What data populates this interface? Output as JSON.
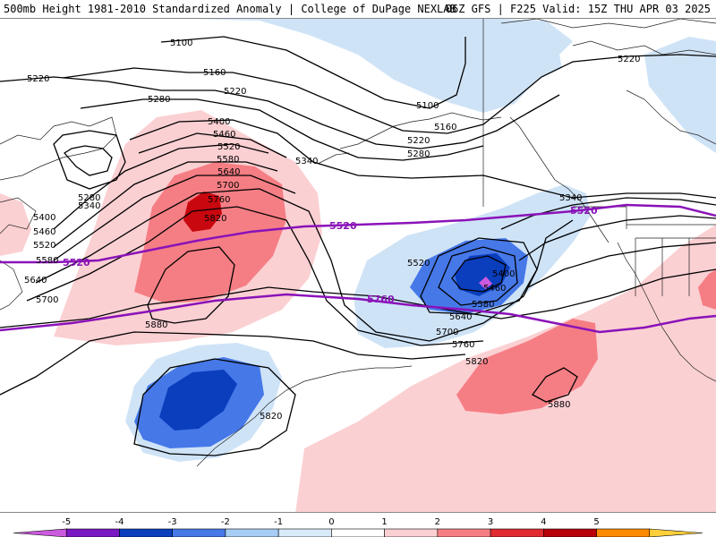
{
  "header": {
    "left_title": "500mb Height 1981-2010 Standardized Anomaly | College of DuPage NEXLAB",
    "right_title": "06Z GFS | F225 Valid: 15Z THU APR 03 2025"
  },
  "colorbar": {
    "labels": [
      "-5",
      "-4",
      "-3",
      "-2",
      "-1",
      "0",
      "1",
      "2",
      "3",
      "4",
      "5"
    ],
    "bins": [
      {
        "color": "#cc5adf"
      },
      {
        "color": "#7a18c4"
      },
      {
        "color": "#0a3ebd"
      },
      {
        "color": "#4678e8"
      },
      {
        "color": "#a7cdf5"
      },
      {
        "color": "#d9ebfb"
      },
      {
        "color": "#ffffff"
      },
      {
        "color": "#fbd0d3"
      },
      {
        "color": "#f57e84"
      },
      {
        "color": "#e02a2f"
      },
      {
        "color": "#b80008"
      },
      {
        "color": "#ff8a00"
      },
      {
        "color": "#ffcf3a"
      }
    ]
  },
  "anomaly_colors": {
    "blue_light": "#cfe3f7",
    "blue_mid": "#4678e8",
    "blue_dark": "#0a3ebd",
    "red_light": "#fbd0d3",
    "red_mid": "#f57e84",
    "red_dark": "#c8070e",
    "thick_contour": "#8a12b8"
  },
  "contour_labels": [
    "5100",
    "5220",
    "5160",
    "5220",
    "5280",
    "5400",
    "5460",
    "5520",
    "5580",
    "5640",
    "5700",
    "5760",
    "5820",
    "5280",
    "5340",
    "5400",
    "5460",
    "5520",
    "5580",
    "5640",
    "5700",
    "5880",
    "5340",
    "5100",
    "5160",
    "5220",
    "5280",
    "5220",
    "5340",
    "5520",
    "5400",
    "5460",
    "5580",
    "5640",
    "5700",
    "5760",
    "5820",
    "5820",
    "5880"
  ],
  "thick_contour_labels": [
    "5520",
    "5520",
    "5760"
  ]
}
